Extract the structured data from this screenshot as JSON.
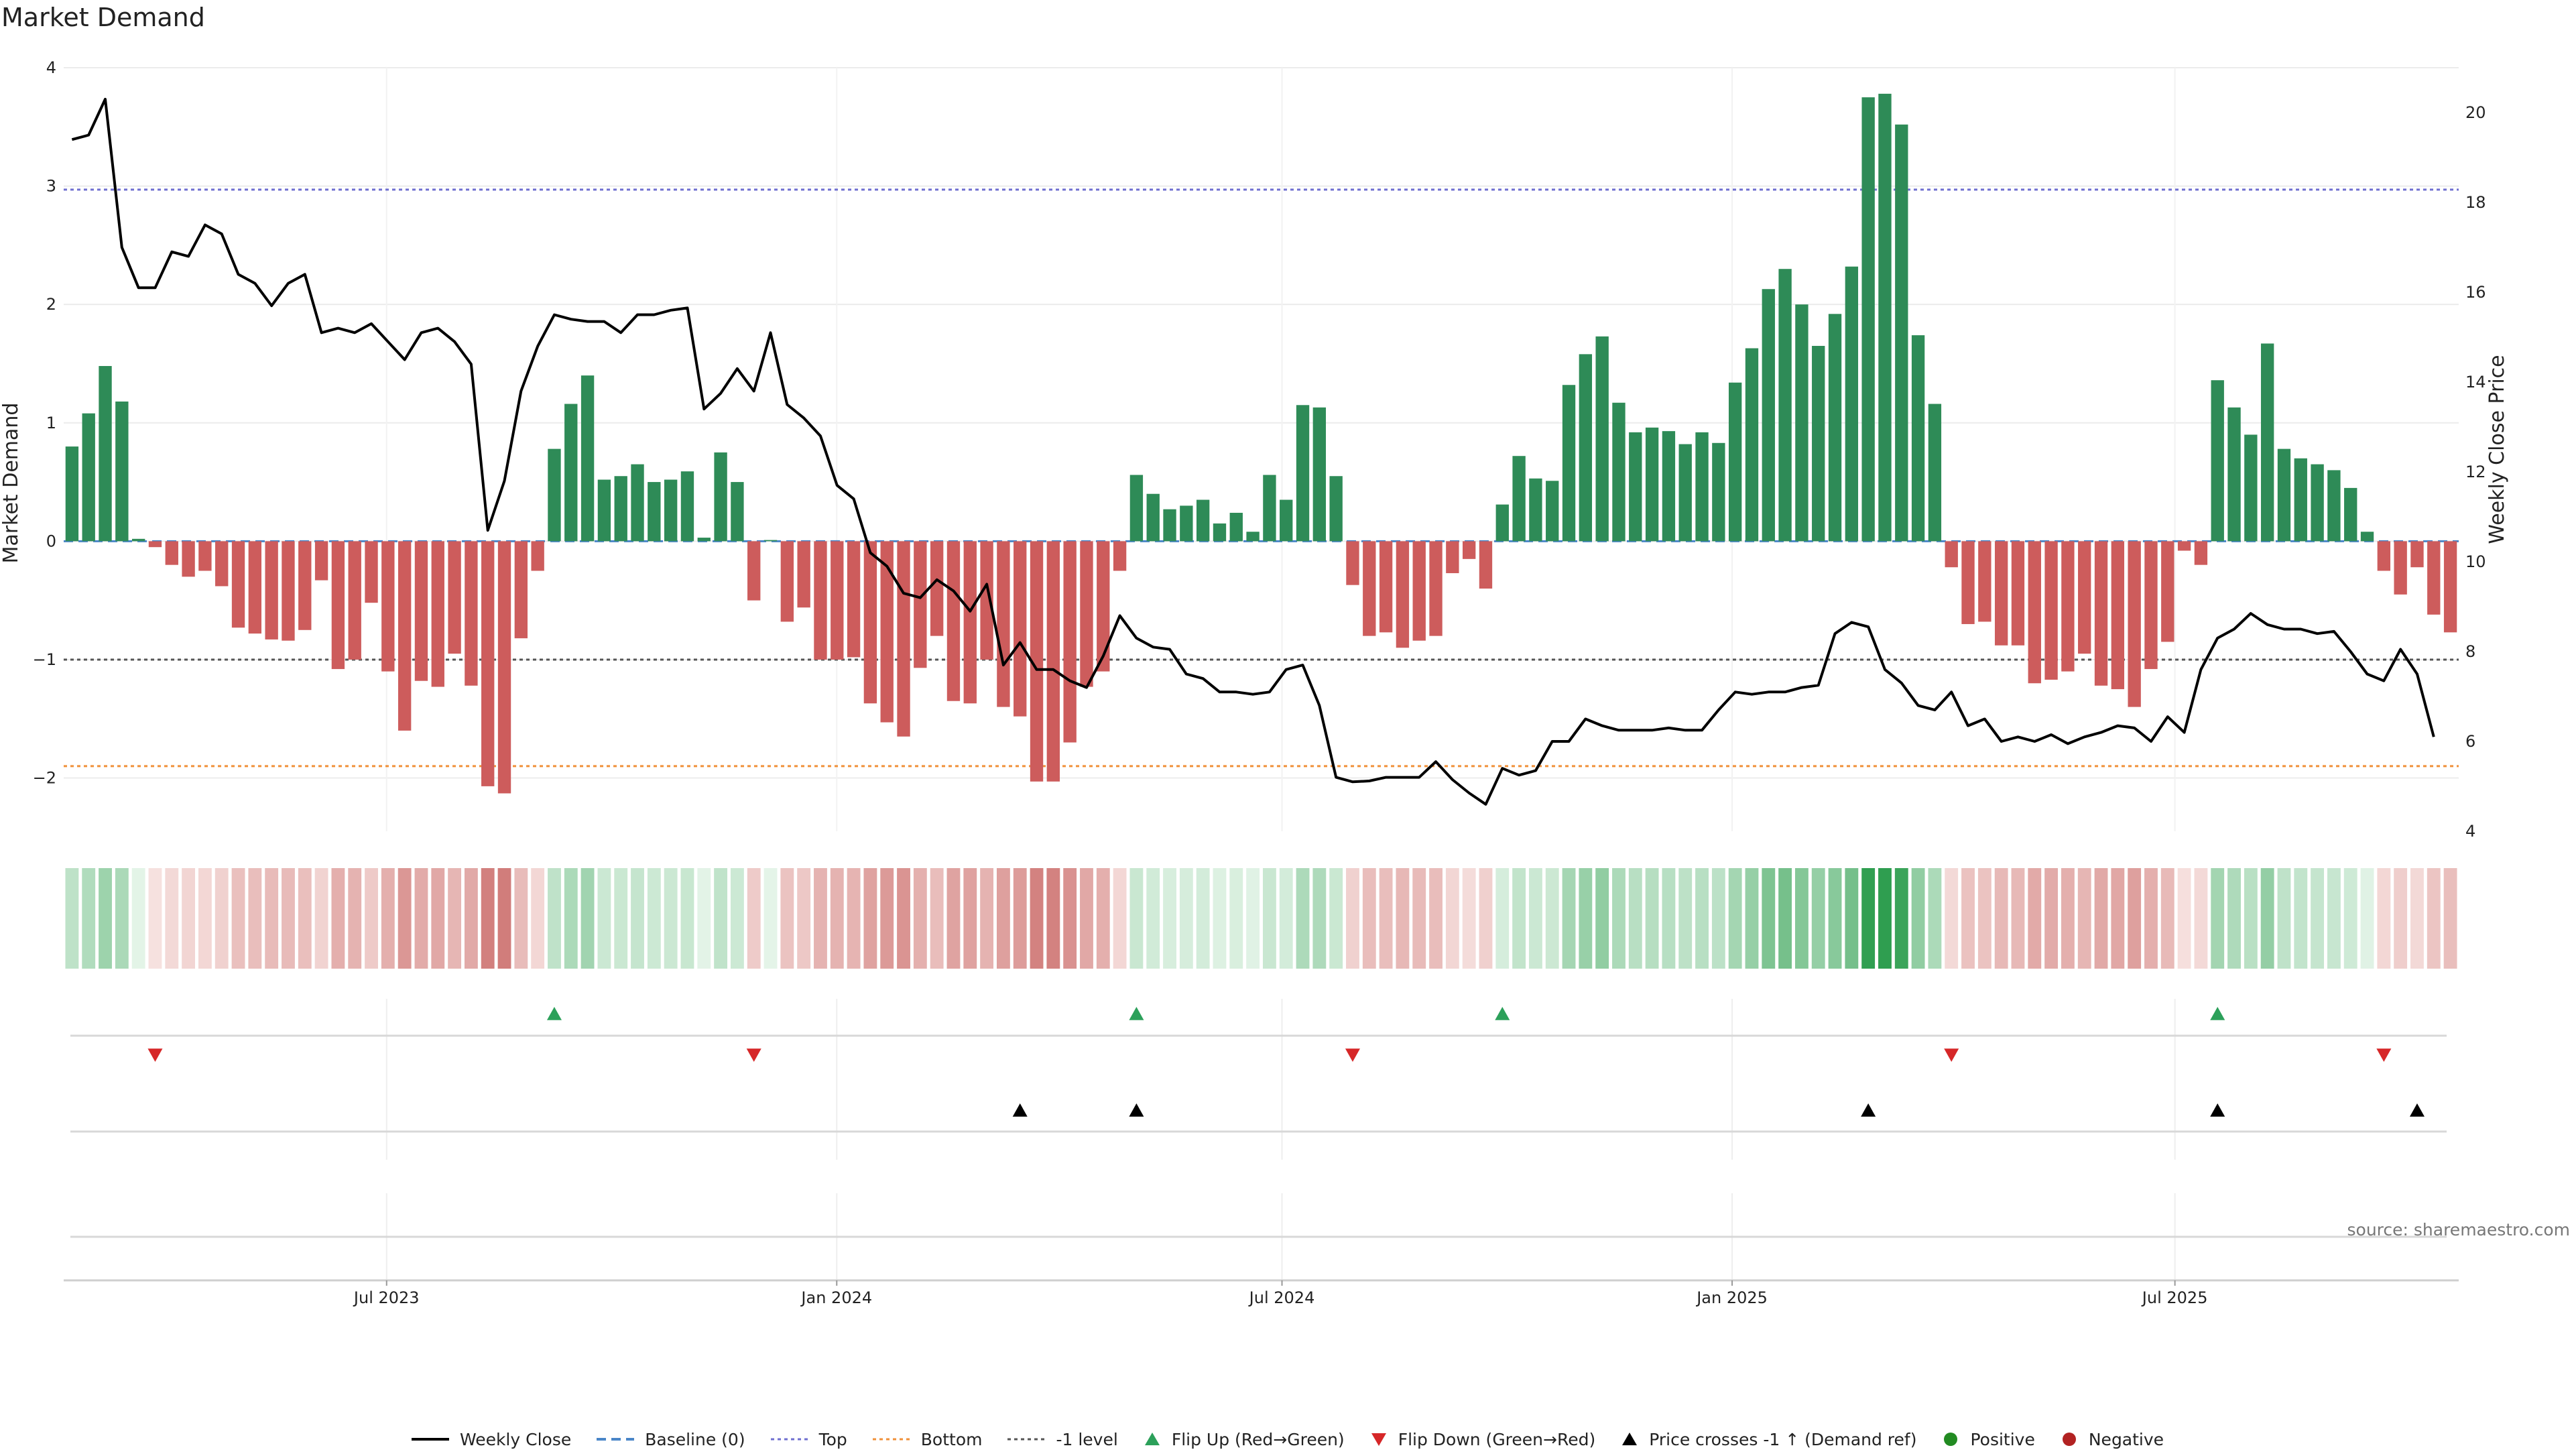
{
  "title": "Market Demand",
  "source_text": "source: sharemaestro.com",
  "chart_data": {
    "type": "bar",
    "title": "Market Demand",
    "ylabel_left": "Market Demand",
    "ylabel_right": "Weekly Close Price",
    "ylim_left": [
      -2.45,
      4.0
    ],
    "yticks_left": [
      4,
      3,
      2,
      1,
      0,
      -1,
      -2
    ],
    "ytick_labels_left": [
      "4",
      "3",
      "2",
      "1",
      "0",
      "−1",
      "−2"
    ],
    "ylim_right": [
      4.0,
      21.0
    ],
    "yticks_right": [
      20,
      18,
      16,
      14,
      12,
      10,
      8,
      6,
      4
    ],
    "x_start": "2023-02-19",
    "x_end": "2025-10-25",
    "x_ticks": [
      {
        "date": "2023-07-01",
        "label": "Jul 2023"
      },
      {
        "date": "2024-01-01",
        "label": "Jan 2024"
      },
      {
        "date": "2024-07-01",
        "label": "Jul 2024"
      },
      {
        "date": "2025-01-01",
        "label": "Jan 2025"
      },
      {
        "date": "2025-07-01",
        "label": "Jul 2025"
      }
    ],
    "reference_lines": [
      {
        "name": "Top",
        "value": 2.97,
        "color": "#6f6fd0"
      },
      {
        "name": "Bottom",
        "value": -1.9,
        "color": "#f0913a"
      },
      {
        "name": "-1 level",
        "value": -1.0,
        "color": "#555555"
      },
      {
        "name": "Baseline (0)",
        "value": 0,
        "color": "#4a86c8"
      }
    ],
    "demand_values": [
      0.8,
      1.08,
      1.48,
      1.18,
      0.02,
      -0.05,
      -0.2,
      -0.3,
      -0.25,
      -0.38,
      -0.73,
      -0.78,
      -0.83,
      -0.84,
      -0.75,
      -0.33,
      -1.08,
      -1.0,
      -0.52,
      -1.1,
      -1.6,
      -1.18,
      -1.23,
      -0.95,
      -1.22,
      -2.07,
      -2.13,
      -0.82,
      -0.25,
      0.78,
      1.16,
      1.4,
      0.52,
      0.55,
      0.65,
      0.5,
      0.52,
      0.59,
      0.03,
      0.75,
      0.5,
      -0.5,
      0.01,
      -0.68,
      -0.56,
      -1.0,
      -1.0,
      -0.98,
      -1.37,
      -1.53,
      -1.65,
      -1.07,
      -0.8,
      -1.35,
      -1.37,
      -1.0,
      -1.4,
      -1.48,
      -2.03,
      -2.03,
      -1.7,
      -1.23,
      -1.1,
      -0.25,
      0.56,
      0.4,
      0.27,
      0.3,
      0.35,
      0.15,
      0.24,
      0.08,
      0.56,
      0.35,
      1.15,
      1.13,
      0.55,
      -0.37,
      -0.8,
      -0.77,
      -0.9,
      -0.84,
      -0.8,
      -0.27,
      -0.15,
      -0.4,
      0.31,
      0.72,
      0.53,
      0.51,
      1.32,
      1.58,
      1.73,
      1.17,
      0.92,
      0.96,
      0.93,
      0.82,
      0.92,
      0.83,
      1.34,
      1.63,
      2.13,
      2.3,
      2.0,
      1.65,
      1.92,
      2.32,
      3.75,
      3.78,
      3.52,
      1.74,
      1.16,
      -0.22,
      -0.7,
      -0.68,
      -0.88,
      -0.88,
      -1.2,
      -1.17,
      -1.1,
      -0.95,
      -1.22,
      -1.25,
      -1.4,
      -1.08,
      -0.85,
      -0.08,
      -0.2,
      1.36,
      1.13,
      0.9,
      1.67,
      0.78,
      0.7,
      0.65,
      0.6,
      0.45,
      0.08,
      -0.25,
      -0.45,
      -0.22,
      -0.62,
      -0.77
    ],
    "close_values": [
      19.4,
      19.5,
      20.3,
      17.0,
      16.1,
      16.1,
      16.9,
      16.8,
      17.5,
      17.3,
      16.4,
      16.2,
      15.7,
      16.2,
      16.4,
      15.1,
      15.2,
      15.1,
      15.3,
      14.9,
      14.5,
      15.1,
      15.2,
      14.9,
      14.4,
      10.7,
      11.8,
      13.8,
      14.8,
      15.5,
      15.4,
      15.35,
      15.35,
      15.1,
      15.5,
      15.5,
      15.6,
      15.65,
      13.4,
      13.75,
      14.3,
      13.8,
      15.1,
      13.5,
      13.2,
      12.8,
      11.7,
      11.4,
      10.2,
      9.9,
      9.3,
      9.2,
      9.6,
      9.35,
      8.9,
      9.5,
      7.7,
      8.2,
      7.6,
      7.6,
      7.35,
      7.2,
      7.9,
      8.8,
      8.3,
      8.1,
      8.05,
      7.5,
      7.4,
      7.1,
      7.1,
      7.05,
      7.1,
      7.6,
      7.7,
      6.8,
      5.2,
      5.1,
      5.12,
      5.2,
      5.2,
      5.2,
      5.55,
      5.15,
      4.85,
      4.6,
      5.4,
      5.25,
      5.35,
      6.0,
      6.0,
      6.5,
      6.35,
      6.25,
      6.25,
      6.25,
      6.3,
      6.25,
      6.25,
      6.7,
      7.1,
      7.05,
      7.1,
      7.1,
      7.2,
      7.25,
      8.4,
      8.65,
      8.55,
      7.6,
      7.3,
      6.8,
      6.7,
      7.1,
      6.35,
      6.5,
      6.0,
      6.1,
      6.0,
      6.15,
      5.95,
      6.1,
      6.2,
      6.35,
      6.3,
      6.0,
      6.55,
      6.2,
      7.6,
      8.3,
      8.5,
      8.85,
      8.6,
      8.5,
      8.5,
      8.4,
      8.45,
      8.0,
      7.5,
      7.35,
      8.05,
      7.5,
      6.1
    ],
    "flip_up_indices": [
      29,
      64,
      86,
      129
    ],
    "flip_down_indices": [
      5,
      41,
      77,
      113,
      139
    ],
    "price_cross_indices": [
      57,
      64,
      108,
      129,
      141
    ],
    "colors": {
      "positive_bar": "#2e8b57",
      "negative_bar": "#cd5c5c",
      "close_line": "#000000",
      "flip_up": "#2ca05a",
      "flip_down": "#d62728",
      "price_cross": "#000000",
      "positive_dot": "#228b22",
      "negative_dot": "#b22222"
    },
    "legend": [
      {
        "key": "weekly_close",
        "label": "Weekly Close",
        "symbol": "line",
        "color": "#000000"
      },
      {
        "key": "baseline",
        "label": "Baseline (0)",
        "symbol": "dash",
        "color": "#4a86c8"
      },
      {
        "key": "top",
        "label": "Top",
        "symbol": "dot",
        "color": "#6f6fd0"
      },
      {
        "key": "bottom",
        "label": "Bottom",
        "symbol": "dot",
        "color": "#f0913a"
      },
      {
        "key": "minus1",
        "label": "-1 level",
        "symbol": "dot",
        "color": "#555555"
      },
      {
        "key": "flip_up",
        "label": "Flip Up (Red→Green)",
        "symbol": "tri-up",
        "color": "#2ca05a"
      },
      {
        "key": "flip_down",
        "label": "Flip Down (Green→Red)",
        "symbol": "tri-down",
        "color": "#d62728"
      },
      {
        "key": "price_cross",
        "label": "Price crosses -1 ↑ (Demand ref)",
        "symbol": "tri-up",
        "color": "#000000"
      },
      {
        "key": "positive",
        "label": "Positive",
        "symbol": "circle",
        "color": "#228b22"
      },
      {
        "key": "negative",
        "label": "Negative",
        "symbol": "circle",
        "color": "#b22222"
      }
    ]
  }
}
